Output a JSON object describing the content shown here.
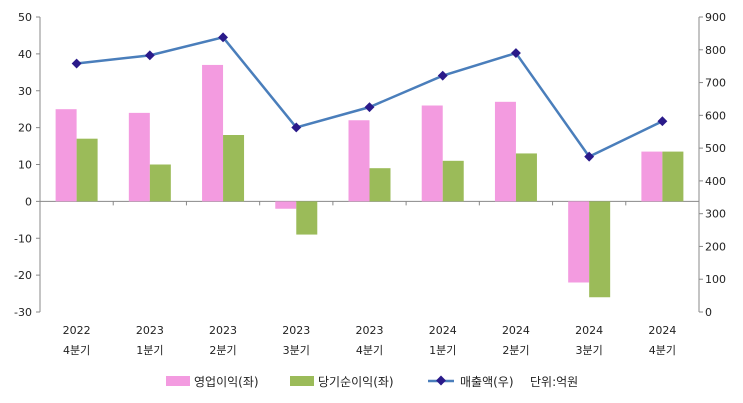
{
  "chart_data": {
    "type": "bar+line",
    "categories": [
      [
        "2022",
        "4분기"
      ],
      [
        "2023",
        "1분기"
      ],
      [
        "2023",
        "2분기"
      ],
      [
        "2023",
        "3분기"
      ],
      [
        "2023",
        "4분기"
      ],
      [
        "2024",
        "1분기"
      ],
      [
        "2024",
        "2분기"
      ],
      [
        "2024",
        "3분기"
      ],
      [
        "2024",
        "4분기"
      ]
    ],
    "series": [
      {
        "name": "영업이익(좌)",
        "type": "bar",
        "axis": "left",
        "color": "#f39be0",
        "values": [
          25,
          24,
          37,
          -2,
          22,
          26,
          27,
          -22,
          13.5
        ]
      },
      {
        "name": "당기순이익(좌)",
        "type": "bar",
        "axis": "left",
        "color": "#9bbb59",
        "values": [
          17,
          10,
          18,
          -9,
          9,
          11,
          13,
          -26,
          13.5
        ]
      },
      {
        "name": "매출액(우)",
        "type": "line",
        "axis": "right",
        "color": "#4a7ebb",
        "marker_color": "#2a1a8a",
        "values": [
          758,
          783,
          838,
          563,
          625,
          721,
          790,
          474,
          582
        ]
      }
    ],
    "left_axis": {
      "min": -30,
      "max": 50,
      "step": 10
    },
    "right_axis": {
      "min": 0,
      "max": 900,
      "step": 100
    },
    "unit_note": "단위:억원",
    "legend_position": "bottom",
    "grid": false
  }
}
